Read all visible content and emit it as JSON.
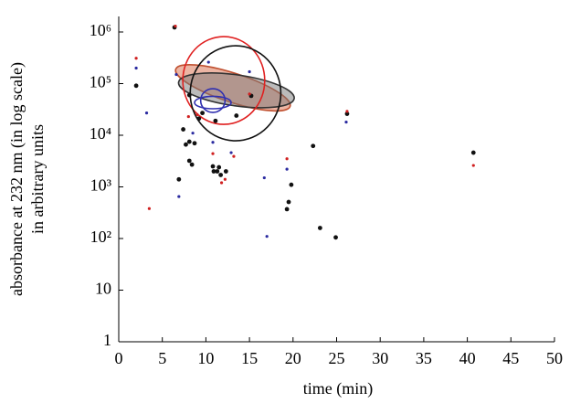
{
  "chart_data": {
    "type": "scatter",
    "xlabel": "time (min)",
    "ylabel": [
      "absorbance at 232 nm (in log scale)",
      "in arbitrary units"
    ],
    "xlim": [
      0,
      50
    ],
    "xticks": [
      0,
      5,
      10,
      15,
      20,
      25,
      30,
      35,
      40,
      45,
      50
    ],
    "ylim": [
      1,
      2000000
    ],
    "log_y": true,
    "yticks": [
      1,
      10,
      {
        "value": 100,
        "label": "10²"
      },
      {
        "value": 1000,
        "label": "10³"
      },
      {
        "value": 10000,
        "label": "10⁴"
      },
      {
        "value": 100000,
        "label": "10⁵"
      },
      {
        "value": 1000000,
        "label": "10⁶"
      }
    ],
    "grid": false,
    "series": [
      {
        "color": "#111111",
        "marker_size": 2.4,
        "x": [
          6.4,
          2,
          7.4,
          7.7,
          8.1,
          8.7,
          8.1,
          8.4,
          9.2,
          9.6,
          11.1,
          6.9,
          10.8,
          10.9,
          11.5,
          11.7,
          12.3,
          11.3,
          13.5,
          15.2,
          22.3,
          19.8,
          19.5,
          19.3,
          23.1,
          24.9,
          26.2,
          40.7,
          8.1
        ],
        "values": [
          1230000,
          91000,
          13000,
          6600,
          7500,
          7000,
          3200,
          2700,
          21000,
          27000,
          19000,
          1400,
          2500,
          2000,
          2400,
          1700,
          2000,
          2000,
          24000,
          58000,
          6200,
          1100,
          510,
          370,
          160,
          105,
          26000,
          4600,
          60000
        ]
      },
      {
        "color": "#d02020",
        "marker_size": 1.6,
        "x": [
          2,
          3.5,
          6.5,
          8,
          9,
          10.8,
          12.2,
          13.2,
          15,
          19.3,
          26.2,
          40.7,
          11.8
        ],
        "values": [
          310000,
          380,
          1300000,
          23000,
          25000,
          4400,
          1400,
          3900,
          63000,
          3500,
          29000,
          2600,
          1200
        ]
      },
      {
        "color": "#2a2aa0",
        "marker_size": 1.6,
        "x": [
          2,
          3.2,
          6.9,
          6.6,
          10.3,
          15,
          16.7,
          17,
          19.3,
          26.1,
          12.9,
          10.8,
          8.5
        ],
        "values": [
          200000,
          27000,
          650,
          150000,
          260000,
          170000,
          1500,
          110,
          2200,
          18000,
          4600,
          7300,
          11000
        ]
      }
    ],
    "ellipses": [
      {
        "x": 13.1,
        "y": 83000,
        "x_radius": 6.9,
        "y_radius_decades": 0.28,
        "angle": 18,
        "stroke": "#c05030",
        "fill": "rgba(220,120,90,0.55)"
      },
      {
        "x": 13.5,
        "y": 74000,
        "x_radius": 6.7,
        "y_radius_decades": 0.3,
        "angle": 8,
        "stroke": "#333333",
        "fill": "rgba(120,120,120,0.5)"
      },
      {
        "x": 12.05,
        "y": 115000,
        "x_radius": 4.7,
        "y_radius_decades": 0.85,
        "angle": 0,
        "stroke": "#e02020",
        "fill": "none"
      },
      {
        "x": 13.4,
        "y": 65000,
        "x_radius": 5.2,
        "y_radius_decades": 0.92,
        "angle": 0,
        "stroke": "#111111",
        "fill": "none"
      },
      {
        "x": 10.8,
        "y": 47000,
        "x_radius": 1.4,
        "y_radius_decades": 0.23,
        "angle": 0,
        "stroke": "#3030b0",
        "fill": "none"
      },
      {
        "x": 10.8,
        "y": 43000,
        "x_radius": 2.1,
        "y_radius_decades": 0.12,
        "angle": 0,
        "stroke": "#3030b0",
        "fill": "none"
      }
    ]
  }
}
